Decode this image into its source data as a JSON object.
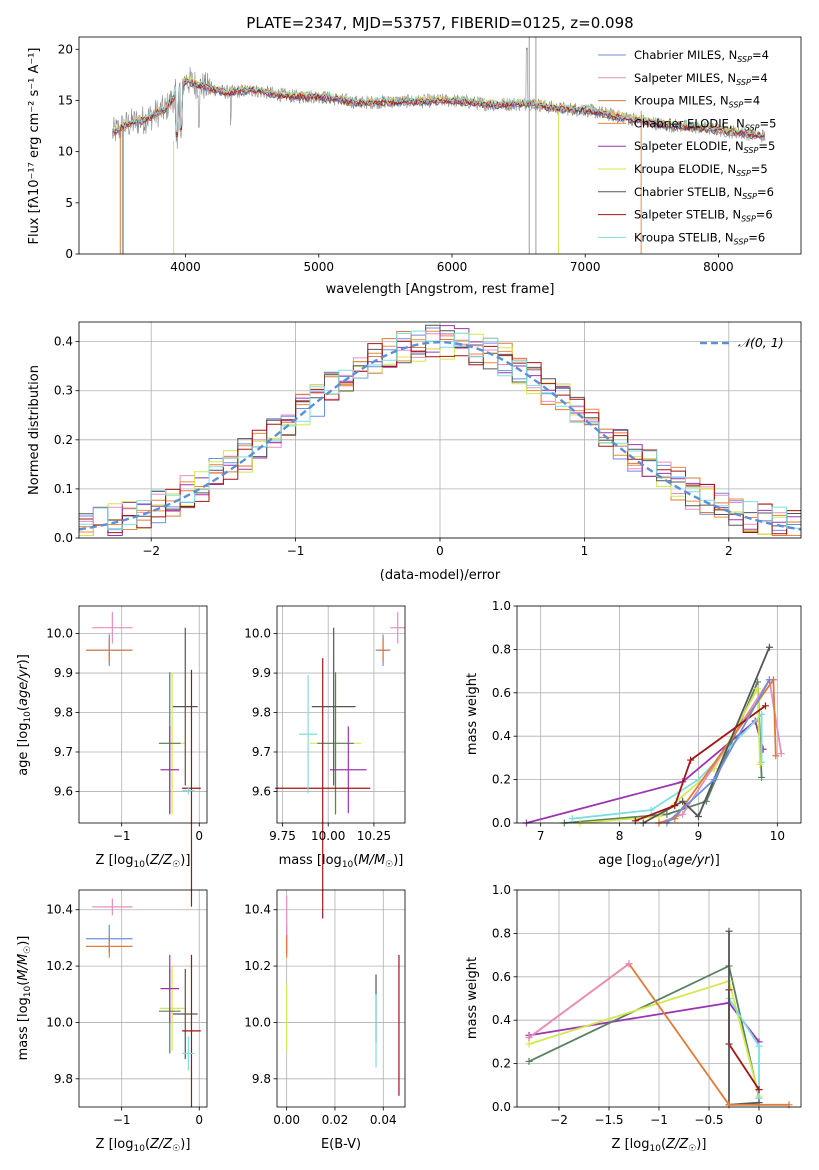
{
  "colors": {
    "chabrier_miles": "#6b8fe0",
    "salpeter_miles": "#e68fbf",
    "kroupa_miles": "#e07b39",
    "chabrier_elodie": "#f08a3c",
    "salpeter_elodie": "#9b36b0",
    "kroupa_elodie": "#d4e84e",
    "chabrier_stelib": "#555555",
    "salpeter_stelib": "#a31515",
    "kroupa_stelib": "#7fdde0",
    "gaussian": "#5b8fd6",
    "green": "#5a8060"
  },
  "chart_data": [
    {
      "id": "spectrum",
      "type": "line",
      "title": "PLATE=2347, MJD=53757, FIBERID=0125, z=0.098",
      "xlabel": "wavelength [Angstrom, rest frame]",
      "ylabel": "Flux [fλ10⁻¹⁷ erg cm⁻² s⁻¹ A⁻¹]",
      "xlim": [
        3200,
        8620
      ],
      "ylim": [
        0,
        21.2
      ],
      "xticks": [
        4000,
        5000,
        6000,
        7000,
        8000
      ],
      "yticks": [
        0,
        5,
        10,
        15,
        20
      ],
      "legend": [
        {
          "name": "Chabrier MILES, N_SSP=4",
          "label": "Chabrier MILES, N",
          "sub": "SSP",
          "suffix": "=4",
          "color": "#6b8fe0"
        },
        {
          "name": "Salpeter MILES, N_SSP=4",
          "label": "Salpeter MILES, N",
          "sub": "SSP",
          "suffix": "=4",
          "color": "#e68fbf"
        },
        {
          "name": "Kroupa MILES, N_SSP=4",
          "label": "Kroupa MILES, N",
          "sub": "SSP",
          "suffix": "=4",
          "color": "#e07b39"
        },
        {
          "name": "Chabrier ELODIE, N_SSP=5",
          "label": "Chabrier ELODIE, N",
          "sub": "SSP",
          "suffix": "=5",
          "color": "#f08a3c"
        },
        {
          "name": "Salpeter ELODIE, N_SSP=5",
          "label": "Salpeter ELODIE, N",
          "sub": "SSP",
          "suffix": "=5",
          "color": "#9b36b0"
        },
        {
          "name": "Kroupa ELODIE, N_SSP=5",
          "label": "Kroupa ELODIE, N",
          "sub": "SSP",
          "suffix": "=5",
          "color": "#d4e84e"
        },
        {
          "name": "Chabrier STELIB, N_SSP=6",
          "label": "Chabrier STELIB, N",
          "sub": "SSP",
          "suffix": "=6",
          "color": "#555555"
        },
        {
          "name": "Salpeter STELIB, N_SSP=6",
          "label": "Salpeter STELIB, N",
          "sub": "SSP",
          "suffix": "=6",
          "color": "#a31515"
        },
        {
          "name": "Kroupa STELIB, N_SSP=6",
          "label": "Kroupa STELIB, N",
          "sub": "SSP",
          "suffix": "=6",
          "color": "#7fdde0"
        }
      ],
      "continuum": {
        "x": [
          3450,
          3550,
          3700,
          3850,
          4000,
          4100,
          4300,
          4500,
          4800,
          5000,
          5300,
          5600,
          6000,
          6300,
          6600,
          6800,
          7000,
          7300,
          7600,
          7900,
          8200,
          8350
        ],
        "y": [
          11.8,
          12.6,
          13.2,
          14.2,
          17.0,
          16.5,
          15.8,
          16.0,
          15.4,
          15.4,
          14.8,
          14.9,
          15.0,
          14.6,
          14.7,
          14.2,
          14.1,
          13.3,
          12.6,
          12.3,
          11.8,
          11.5
        ]
      }
    },
    {
      "id": "residuals",
      "type": "step",
      "xlabel": "(data-model)/error",
      "ylabel": "Normed distribution",
      "xlim": [
        -2.5,
        2.5
      ],
      "ylim": [
        0,
        0.44
      ],
      "xticks": [
        -2,
        -1,
        0,
        1,
        2
      ],
      "yticks": [
        0.0,
        0.1,
        0.2,
        0.3,
        0.4
      ],
      "legend": "N(0,1)",
      "bin_width": 0.1
    },
    {
      "id": "age-vs-Z",
      "type": "errorbar",
      "xlabel": "Z [log10(Z/Z☉)]",
      "ylabel": "age [log10(age/yr)]",
      "xlim": [
        -1.55,
        0.1
      ],
      "ylim": [
        9.52,
        10.07
      ],
      "xticks": [
        -1,
        0
      ],
      "yticks": [
        9.6,
        9.7,
        9.8,
        9.9,
        10.0
      ],
      "points": [
        {
          "x": -1.16,
          "y": 9.958,
          "xerr": 0.3,
          "yerr": 0.04,
          "color": "#6b8fe0"
        },
        {
          "x": -1.12,
          "y": 10.015,
          "xerr": 0.26,
          "yerr": 0.04,
          "color": "#e68fbf"
        },
        {
          "x": -1.16,
          "y": 9.958,
          "xerr": 0.3,
          "yerr": 0.03,
          "color": "#e07b39"
        },
        {
          "x": -0.35,
          "y": 9.722,
          "xerr": 0.16,
          "yerr": 0.18,
          "color": "#d4e84e"
        },
        {
          "x": -0.38,
          "y": 9.722,
          "xerr": 0.14,
          "yerr": 0.18,
          "color": "#5a8060"
        },
        {
          "x": -0.38,
          "y": 9.655,
          "xerr": 0.12,
          "yerr": 0.11,
          "color": "#9b36b0"
        },
        {
          "x": -0.18,
          "y": 9.815,
          "xerr": 0.16,
          "yerr": 0.2,
          "color": "#555555"
        },
        {
          "x": -0.1,
          "y": 9.608,
          "xerr": 0.12,
          "yerr": 0.3,
          "color": "#a31515"
        },
        {
          "x": -0.14,
          "y": 9.602,
          "xerr": 0.08,
          "yerr": 0.01,
          "color": "#7fdde0"
        }
      ]
    },
    {
      "id": "age-vs-mass",
      "type": "errorbar",
      "xlabel": "mass [log10(M/M☉)]",
      "ylabel": "",
      "xlim": [
        9.72,
        10.42
      ],
      "ylim": [
        9.52,
        10.07
      ],
      "xticks": [
        9.75,
        10.0,
        10.25
      ],
      "yticks": [
        9.6,
        9.7,
        9.8,
        9.9,
        10.0
      ],
      "points": [
        {
          "x": 10.3,
          "y": 9.958,
          "xerr": 0.04,
          "yerr": 0.04,
          "color": "#6b8fe0"
        },
        {
          "x": 10.38,
          "y": 10.015,
          "xerr": 0.04,
          "yerr": 0.04,
          "color": "#e68fbf"
        },
        {
          "x": 10.3,
          "y": 9.958,
          "xerr": 0.03,
          "yerr": 0.03,
          "color": "#e07b39"
        },
        {
          "x": 10.04,
          "y": 9.722,
          "xerr": 0.14,
          "yerr": 0.18,
          "color": "#d4e84e"
        },
        {
          "x": 10.04,
          "y": 9.722,
          "xerr": 0.1,
          "yerr": 0.18,
          "color": "#5a8060"
        },
        {
          "x": 10.11,
          "y": 9.655,
          "xerr": 0.1,
          "yerr": 0.11,
          "color": "#9b36b0"
        },
        {
          "x": 10.03,
          "y": 9.815,
          "xerr": 0.12,
          "yerr": 0.2,
          "color": "#555555"
        },
        {
          "x": 9.97,
          "y": 9.608,
          "xerr": 0.26,
          "yerr": 0.33,
          "color": "#a31515"
        },
        {
          "x": 9.89,
          "y": 9.745,
          "xerr": 0.05,
          "yerr": 0.15,
          "color": "#7fdde0"
        }
      ]
    },
    {
      "id": "mass-weight-vs-age",
      "type": "line",
      "xlabel": "age [log10(age/yr)]",
      "ylabel": "mass weight",
      "xlim": [
        6.7,
        10.3
      ],
      "ylim": [
        0,
        1.0
      ],
      "xticks": [
        7,
        8,
        9,
        10
      ],
      "yticks": [
        0.0,
        0.2,
        0.4,
        0.6,
        0.8,
        1.0
      ],
      "series": [
        {
          "color": "#9b36b0",
          "x": [
            6.82,
            8.8,
            9.72,
            9.82
          ],
          "y": [
            0.0,
            0.19,
            0.47,
            0.34
          ]
        },
        {
          "color": "#5a8060",
          "x": [
            7.3,
            8.6,
            9.1,
            9.75,
            9.8
          ],
          "y": [
            0.0,
            0.04,
            0.1,
            0.65,
            0.21
          ]
        },
        {
          "color": "#7fdde0",
          "x": [
            7.4,
            8.4,
            9.0,
            9.8,
            9.8
          ],
          "y": [
            0.02,
            0.06,
            0.2,
            0.5,
            0.28
          ]
        },
        {
          "color": "#d4e84e",
          "x": [
            7.5,
            8.5,
            9.2,
            9.75,
            9.78
          ],
          "y": [
            0.0,
            0.03,
            0.25,
            0.62,
            0.27
          ]
        },
        {
          "color": "#e68fbf",
          "x": [
            8.5,
            8.8,
            9.9,
            10.05
          ],
          "y": [
            0.0,
            0.04,
            0.66,
            0.32
          ]
        },
        {
          "color": "#e07b39",
          "x": [
            8.5,
            8.7,
            9.95,
            9.98
          ],
          "y": [
            0.0,
            0.02,
            0.66,
            0.31
          ]
        },
        {
          "color": "#555555",
          "x": [
            8.3,
            8.8,
            9.0,
            9.9
          ],
          "y": [
            0.0,
            0.1,
            0.03,
            0.81
          ]
        },
        {
          "color": "#a31515",
          "x": [
            8.2,
            8.7,
            8.9,
            9.85
          ],
          "y": [
            0.01,
            0.08,
            0.29,
            0.54
          ]
        },
        {
          "color": "#6b8fe0",
          "x": [
            8.6,
            9.2,
            9.9
          ],
          "y": [
            0.0,
            0.2,
            0.66
          ]
        }
      ]
    },
    {
      "id": "mass-vs-Z",
      "type": "errorbar",
      "xlabel": "Z [log10(Z/Z☉)]",
      "ylabel": "mass [log10(M/M☉)]",
      "xlim": [
        -1.55,
        0.1
      ],
      "ylim": [
        9.7,
        10.47
      ],
      "xticks": [
        -1,
        0
      ],
      "yticks": [
        9.8,
        10.0,
        10.2,
        10.4
      ],
      "points": [
        {
          "x": -1.16,
          "y": 10.297,
          "xerr": 0.3,
          "yerr": 0.05,
          "color": "#6b8fe0"
        },
        {
          "x": -1.12,
          "y": 10.41,
          "xerr": 0.26,
          "yerr": 0.03,
          "color": "#e68fbf"
        },
        {
          "x": -1.16,
          "y": 10.27,
          "xerr": 0.3,
          "yerr": 0.04,
          "color": "#e07b39"
        },
        {
          "x": -0.35,
          "y": 10.05,
          "xerr": 0.16,
          "yerr": 0.15,
          "color": "#d4e84e"
        },
        {
          "x": -0.38,
          "y": 10.04,
          "xerr": 0.14,
          "yerr": 0.15,
          "color": "#5a8060"
        },
        {
          "x": -0.38,
          "y": 10.12,
          "xerr": 0.12,
          "yerr": 0.12,
          "color": "#9b36b0"
        },
        {
          "x": -0.18,
          "y": 10.03,
          "xerr": 0.16,
          "yerr": 0.16,
          "color": "#555555"
        },
        {
          "x": -0.1,
          "y": 9.97,
          "xerr": 0.12,
          "yerr": 0.27,
          "color": "#a31515"
        },
        {
          "x": -0.14,
          "y": 9.89,
          "xerr": 0.08,
          "yerr": 0.06,
          "color": "#7fdde0"
        }
      ]
    },
    {
      "id": "mass-vs-ebv",
      "type": "errorbar",
      "xlabel": "E(B-V)",
      "ylabel": "",
      "xlim": [
        -0.004,
        0.049
      ],
      "ylim": [
        9.7,
        10.47
      ],
      "xticks": [
        0.0,
        0.02,
        0.04
      ],
      "yticks": [
        9.8,
        10.0,
        10.2,
        10.4
      ],
      "points": [
        {
          "x": 0.0,
          "y": 10.297,
          "xerr": 0.0,
          "yerr": 0.05,
          "color": "#6b8fe0"
        },
        {
          "x": 0.0,
          "y": 10.38,
          "xerr": 0.0,
          "yerr": 0.07,
          "color": "#e68fbf"
        },
        {
          "x": 0.0,
          "y": 10.27,
          "xerr": 0.0,
          "yerr": 0.04,
          "color": "#e07b39"
        },
        {
          "x": 0.0,
          "y": 10.02,
          "xerr": 0.0,
          "yerr": 0.12,
          "color": "#d4e84e"
        },
        {
          "x": 0.037,
          "y": 10.05,
          "xerr": 0.0,
          "yerr": 0.12,
          "color": "#555555"
        },
        {
          "x": 0.037,
          "y": 9.97,
          "xerr": 0.0,
          "yerr": 0.13,
          "color": "#7fdde0"
        },
        {
          "x": 0.0465,
          "y": 9.99,
          "xerr": 0.0,
          "yerr": 0.25,
          "color": "#a31515"
        }
      ]
    },
    {
      "id": "mass-weight-vs-Z",
      "type": "line",
      "xlabel": "Z [log10(Z/Z☉)]",
      "ylabel": "mass weight",
      "xlim": [
        -2.42,
        0.42
      ],
      "ylim": [
        0,
        1.0
      ],
      "xticks": [
        -2.0,
        -1.5,
        -1.0,
        -0.5,
        0.0
      ],
      "yticks": [
        0.0,
        0.2,
        0.4,
        0.6,
        0.8,
        1.0
      ],
      "series": [
        {
          "color": "#9b36b0",
          "x": [
            -2.3,
            -0.3,
            0.0
          ],
          "y": [
            0.33,
            0.48,
            0.3
          ]
        },
        {
          "color": "#5a8060",
          "x": [
            -2.3,
            -0.3,
            0.0
          ],
          "y": [
            0.21,
            0.65,
            0.04
          ]
        },
        {
          "color": "#d4e84e",
          "x": [
            -2.3,
            -0.3,
            0.0
          ],
          "y": [
            0.29,
            0.58,
            0.05
          ]
        },
        {
          "color": "#7fdde0",
          "x": [
            -0.3,
            0.0,
            0.0
          ],
          "y": [
            0.5,
            0.28,
            0.04
          ]
        },
        {
          "color": "#a31515",
          "x": [
            -0.3,
            -0.3,
            0.0
          ],
          "y": [
            0.54,
            0.29,
            0.08
          ]
        },
        {
          "color": "#555555",
          "x": [
            -0.3,
            -0.3,
            0.0
          ],
          "y": [
            0.81,
            0.01,
            0.02
          ]
        },
        {
          "color": "#e07b39",
          "x": [
            -2.3,
            -1.3,
            -0.3,
            0.3
          ],
          "y": [
            0.32,
            0.66,
            0.01,
            0.01
          ]
        },
        {
          "color": "#e68fbf",
          "x": [
            -2.3,
            -1.3
          ],
          "y": [
            0.32,
            0.66
          ]
        }
      ]
    }
  ]
}
